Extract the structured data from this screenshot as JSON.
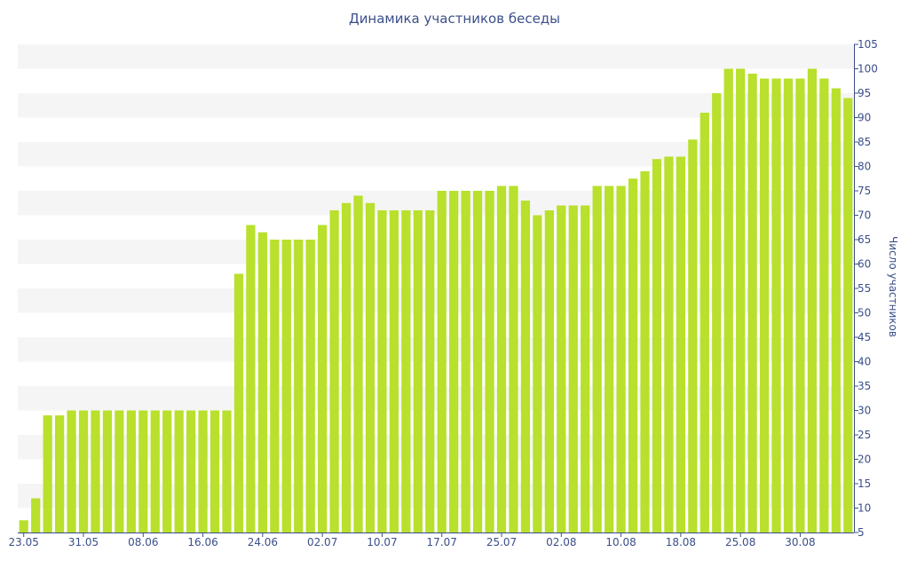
{
  "chart_data": {
    "type": "bar",
    "title": "Динамика участников беседы",
    "ylabel": "Число участников",
    "xlabel": "",
    "ylim": [
      5,
      105
    ],
    "y_ticks": [
      5,
      10,
      15,
      20,
      25,
      30,
      35,
      40,
      45,
      50,
      55,
      60,
      65,
      70,
      75,
      80,
      85,
      90,
      95,
      100,
      105
    ],
    "y_axis_side": "right",
    "x_tick_labels": [
      {
        "label": "23.05",
        "index": 0
      },
      {
        "label": "31.05",
        "index": 5
      },
      {
        "label": "08.06",
        "index": 10
      },
      {
        "label": "16.06",
        "index": 15
      },
      {
        "label": "24.06",
        "index": 20
      },
      {
        "label": "02.07",
        "index": 25
      },
      {
        "label": "10.07",
        "index": 30
      },
      {
        "label": "17.07",
        "index": 35
      },
      {
        "label": "25.07",
        "index": 40
      },
      {
        "label": "02.08",
        "index": 45
      },
      {
        "label": "10.08",
        "index": 50
      },
      {
        "label": "18.08",
        "index": 55
      },
      {
        "label": "25.08",
        "index": 60
      },
      {
        "label": "30.08",
        "index": 65
      }
    ],
    "values": [
      7.5,
      12,
      29,
      29,
      30,
      30,
      30,
      30,
      30,
      30,
      30,
      30,
      30,
      30,
      30,
      30,
      30,
      30,
      58,
      68,
      66.5,
      65,
      65,
      65,
      65,
      68,
      71,
      72.5,
      74,
      72.5,
      71,
      71,
      71,
      71,
      71,
      75,
      75,
      75,
      75,
      75,
      76,
      76,
      73,
      70,
      71,
      72,
      72,
      72,
      76,
      76,
      76,
      77.5,
      79,
      81.5,
      82,
      82,
      85.5,
      91,
      95,
      100,
      100,
      99,
      98,
      98,
      98,
      98,
      100,
      98,
      96,
      94
    ],
    "colors": {
      "bar": "#b8e02c",
      "band": "#f5f5f5",
      "axis": "#3b4f8a",
      "text": "#3b4f8a"
    },
    "grid": "alternating horizontal bands"
  }
}
